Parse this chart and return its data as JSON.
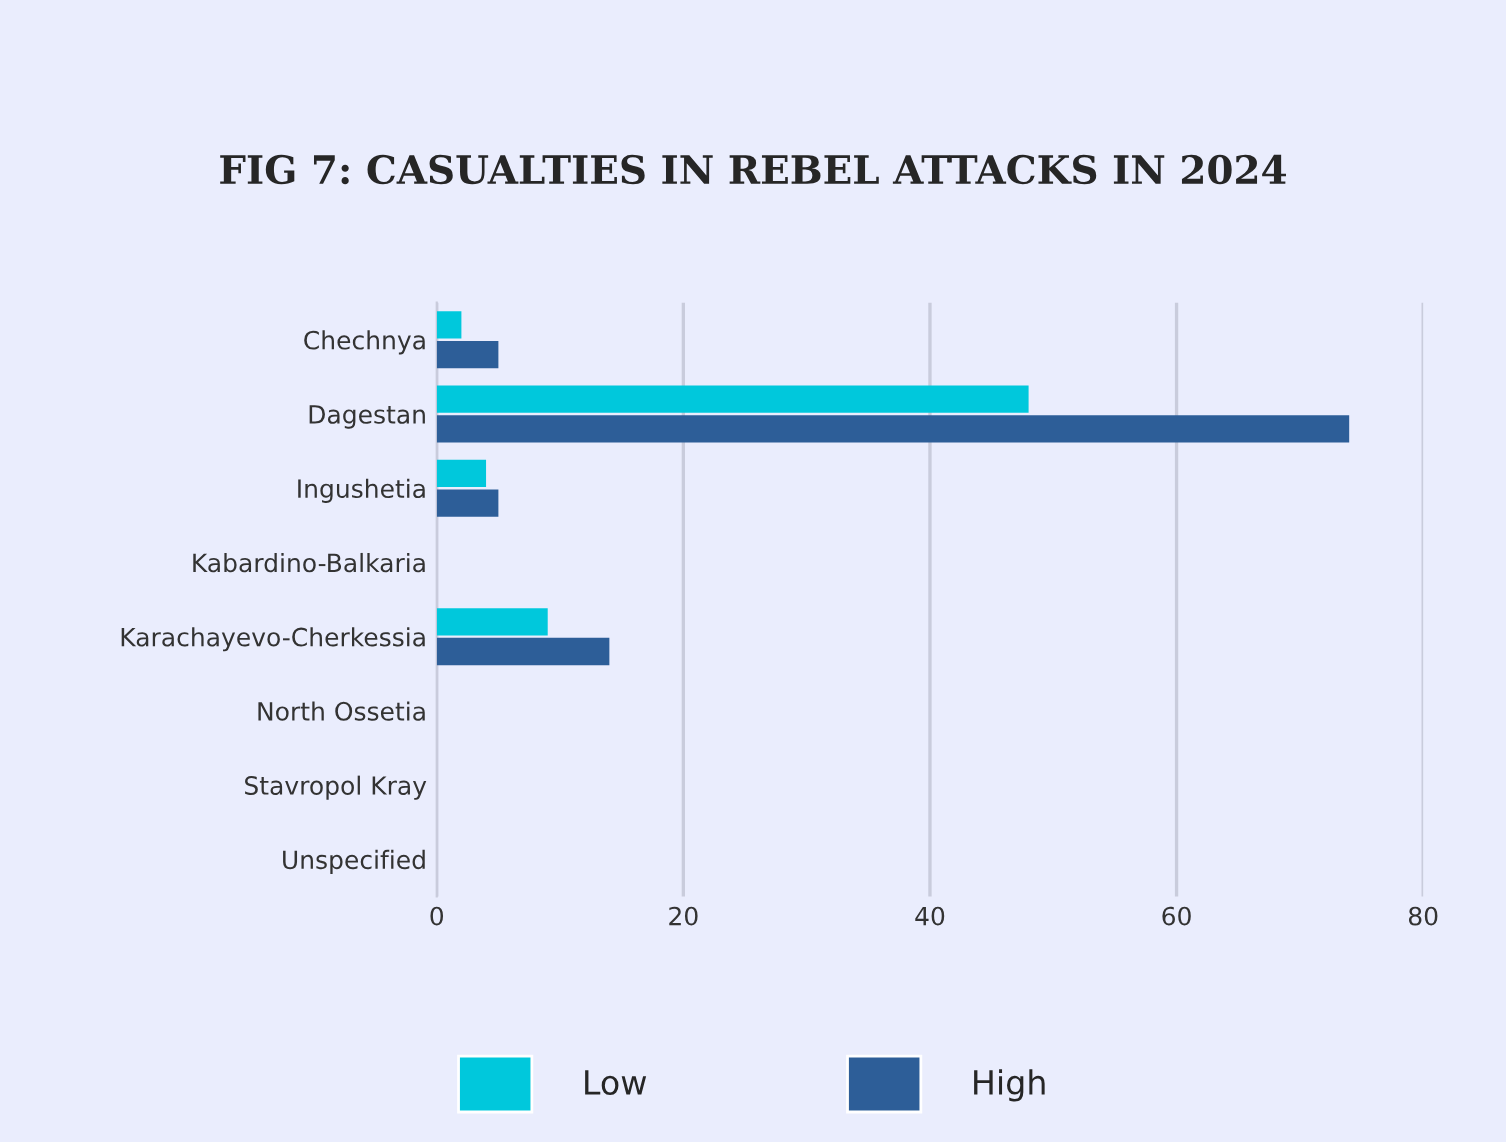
{
  "chart_data": {
    "type": "bar",
    "orientation": "horizontal",
    "title": "FIG 7: CASUALTIES IN REBEL ATTACKS IN 2024",
    "categories": [
      "Chechnya",
      "Dagestan",
      "Ingushetia",
      "Kabardino-Balkaria",
      "Karachayevo-Cherkessia",
      "North Ossetia",
      "Stavropol Kray",
      "Unspecified"
    ],
    "series": [
      {
        "name": "Low",
        "color": "#00c8dc",
        "values": [
          2,
          48,
          4,
          0,
          9,
          0,
          0,
          0
        ]
      },
      {
        "name": "High",
        "color": "#2d5e98",
        "values": [
          5,
          74,
          5,
          0,
          14,
          0,
          0,
          0
        ]
      }
    ],
    "xlim": [
      0,
      80
    ],
    "xticks": [
      0,
      20,
      40,
      60,
      80
    ],
    "grid": "x",
    "legend": "bottom"
  }
}
